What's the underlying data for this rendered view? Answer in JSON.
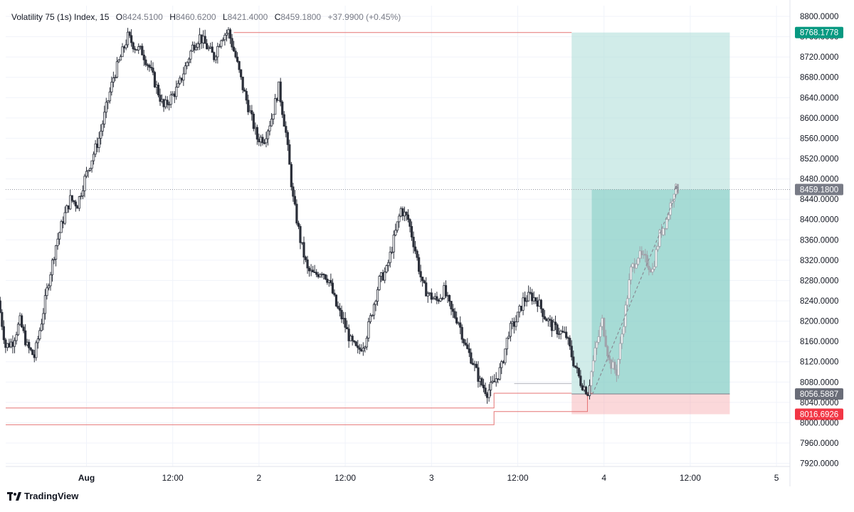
{
  "legend": {
    "symbol": "Volatility 75 (1s) Index, 15",
    "o_label": "O",
    "o_value": "8424.5100",
    "h_label": "H",
    "h_value": "8460.6200",
    "l_label": "L",
    "l_value": "8421.4000",
    "c_label": "C",
    "c_value": "8459.1800",
    "change": "+37.9900 (+0.45%)"
  },
  "brand": {
    "name": "TradingView"
  },
  "colors": {
    "candle": "#2a2e39",
    "candle_recent": "#a0a3ab",
    "profit_zone": "#b2dfdb",
    "profit_fill": "#26a69a",
    "loss_zone": "#f7a9ae",
    "line_red": "#e57373",
    "label_green": "#089981",
    "label_gray": "#787b86",
    "label_red": "#f23645",
    "grid": "#f0f3fa"
  },
  "chart_data": {
    "type": "candlestick",
    "y_range": [
      7900,
      8810
    ],
    "y_ticks": [
      "8800.0000",
      "8760.0000",
      "8720.0000",
      "8680.0000",
      "8640.0000",
      "8600.0000",
      "8560.0000",
      "8520.0000",
      "8480.0000",
      "8440.0000",
      "8400.0000",
      "8360.0000",
      "8320.0000",
      "8280.0000",
      "8240.0000",
      "8200.0000",
      "8160.0000",
      "8120.0000",
      "8080.0000",
      "8040.0000",
      "8000.0000",
      "7960.0000",
      "7920.0000"
    ],
    "x_ticks": [
      {
        "label": "Aug",
        "bold": true
      },
      {
        "label": "12:00"
      },
      {
        "label": "2"
      },
      {
        "label": "12:00"
      },
      {
        "label": "3"
      },
      {
        "label": "12:00"
      },
      {
        "label": "4"
      },
      {
        "label": "12:00"
      },
      {
        "label": "5"
      }
    ],
    "x_tick_hours": [
      12,
      24,
      36,
      48,
      60,
      72,
      84,
      96,
      108
    ],
    "x_range_hours": [
      0,
      110.5
    ],
    "series_anchor_points": [
      [
        0,
        8240
      ],
      [
        1,
        8150
      ],
      [
        2,
        8160
      ],
      [
        3,
        8200
      ],
      [
        4,
        8150
      ],
      [
        5,
        8130
      ],
      [
        6,
        8200
      ],
      [
        7,
        8280
      ],
      [
        8,
        8350
      ],
      [
        9,
        8400
      ],
      [
        10,
        8440
      ],
      [
        11,
        8430
      ],
      [
        12,
        8480
      ],
      [
        13,
        8520
      ],
      [
        14,
        8560
      ],
      [
        15,
        8620
      ],
      [
        16,
        8680
      ],
      [
        17,
        8720
      ],
      [
        18,
        8760
      ],
      [
        19,
        8740
      ],
      [
        20,
        8730
      ],
      [
        21,
        8700
      ],
      [
        22,
        8660
      ],
      [
        23,
        8620
      ],
      [
        24,
        8640
      ],
      [
        25,
        8660
      ],
      [
        26,
        8700
      ],
      [
        27,
        8740
      ],
      [
        28,
        8760
      ],
      [
        29,
        8740
      ],
      [
        30,
        8720
      ],
      [
        31,
        8760
      ],
      [
        32,
        8770
      ],
      [
        33,
        8720
      ],
      [
        34,
        8660
      ],
      [
        35,
        8610
      ],
      [
        36,
        8560
      ],
      [
        37,
        8560
      ],
      [
        38,
        8600
      ],
      [
        39,
        8660
      ],
      [
        40,
        8570
      ],
      [
        41,
        8440
      ],
      [
        42,
        8360
      ],
      [
        43,
        8300
      ],
      [
        44,
        8290
      ],
      [
        45,
        8300
      ],
      [
        46,
        8280
      ],
      [
        47,
        8230
      ],
      [
        48,
        8200
      ],
      [
        49,
        8160
      ],
      [
        50,
        8140
      ],
      [
        51,
        8160
      ],
      [
        52,
        8220
      ],
      [
        53,
        8280
      ],
      [
        54,
        8300
      ],
      [
        55,
        8360
      ],
      [
        56,
        8420
      ],
      [
        57,
        8400
      ],
      [
        58,
        8340
      ],
      [
        59,
        8270
      ],
      [
        60,
        8250
      ],
      [
        61,
        8240
      ],
      [
        62,
        8260
      ],
      [
        63,
        8220
      ],
      [
        64,
        8200
      ],
      [
        65,
        8150
      ],
      [
        66,
        8120
      ],
      [
        67,
        8080
      ],
      [
        68,
        8060
      ],
      [
        69,
        8080
      ],
      [
        70,
        8110
      ],
      [
        71,
        8180
      ],
      [
        72,
        8200
      ],
      [
        73,
        8240
      ],
      [
        74,
        8250
      ],
      [
        75,
        8240
      ],
      [
        76,
        8210
      ],
      [
        77,
        8190
      ],
      [
        78,
        8180
      ],
      [
        79,
        8170
      ],
      [
        80,
        8120
      ],
      [
        81,
        8080
      ],
      [
        82,
        8060
      ],
      [
        83,
        8140
      ],
      [
        84,
        8200
      ],
      [
        85,
        8120
      ],
      [
        86,
        8100
      ],
      [
        87,
        8200
      ],
      [
        88,
        8300
      ],
      [
        89,
        8330
      ],
      [
        90,
        8320
      ],
      [
        91,
        8300
      ],
      [
        92,
        8370
      ],
      [
        93,
        8400
      ],
      [
        94,
        8459
      ]
    ],
    "position": {
      "type": "long",
      "entry_hour_start": 79.5,
      "entry_hour_end": 101.5,
      "target": 8768.1778,
      "entry": 8056.5887,
      "stop": 8016.6926,
      "current": 8459.18,
      "fill_start_hour": 82.3,
      "fill_end_hour": 94.5
    },
    "price_labels": {
      "target": "8768.1778",
      "current": "8459.1800",
      "entry": "8056.5887",
      "stop": "8016.6926"
    },
    "drawn_lines": [
      {
        "kind": "hline",
        "price": 8768.1778,
        "from_hour": 32.5,
        "to_hour": 79.5
      },
      {
        "kind": "step",
        "points": [
          [
            0,
            8029
          ],
          [
            68.7,
            8029
          ],
          [
            68.7,
            8058
          ],
          [
            79.5,
            8058
          ]
        ]
      },
      {
        "kind": "step",
        "points": [
          [
            0,
            7996
          ],
          [
            68.7,
            7996
          ],
          [
            68.7,
            8022
          ],
          [
            81.7,
            8022
          ],
          [
            81.7,
            8058
          ],
          [
            82.5,
            8058
          ]
        ]
      },
      {
        "kind": "hline_gray",
        "price": 8077,
        "from_hour": 71.5,
        "to_hour": 79.5
      }
    ]
  }
}
